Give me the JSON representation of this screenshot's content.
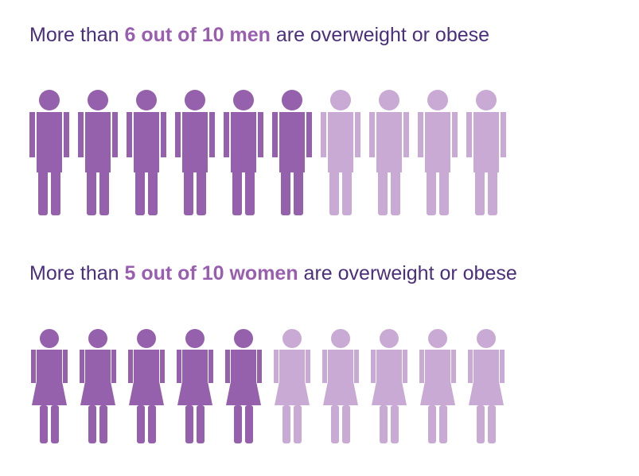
{
  "chart_data": [
    {
      "type": "pictogram",
      "icon": "man",
      "title_parts": [
        "More than ",
        "6 out of 10 men",
        " are overweight or obese"
      ],
      "value": 6,
      "total": 10,
      "color": "#9560ac",
      "rest_color": "#c9aad4"
    },
    {
      "type": "pictogram",
      "icon": "woman",
      "title_parts": [
        "More than ",
        "5 out of 10 women",
        " are overweight or obese"
      ],
      "value": 5,
      "total": 10,
      "color": "#9560ac",
      "rest_color": "#c9aad4"
    }
  ]
}
